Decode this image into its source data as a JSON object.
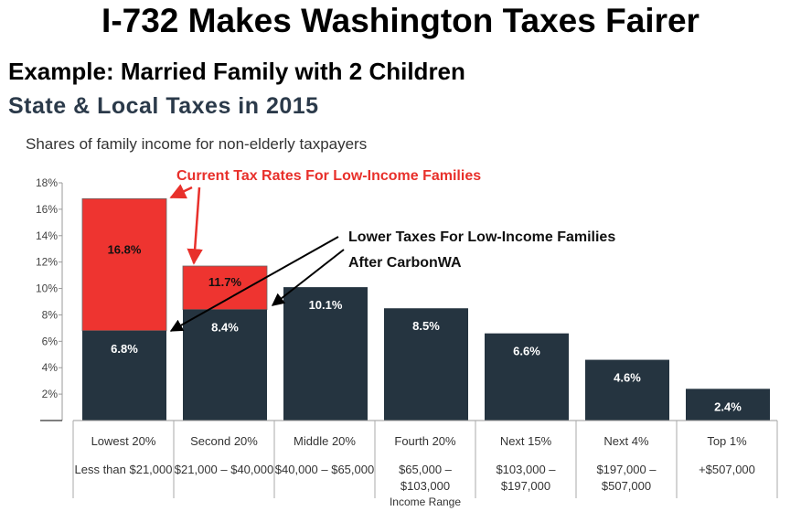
{
  "header": {
    "title": "I-732 Makes Washington Taxes Fairer",
    "subtitle1": "Example: Married Family with 2 Children",
    "subtitle2": "State & Local Taxes in 2015"
  },
  "colors": {
    "dark_bar": "#253440",
    "red_bar": "#ee3430",
    "red_text": "#e8302b"
  },
  "chart_data": {
    "type": "bar",
    "title": "State & Local Taxes in 2015",
    "subtitle": "Shares of family income for non-elderly taxpayers",
    "xlabel": "Income Range",
    "ylabel": "",
    "ylim": [
      0,
      18
    ],
    "yticks": [
      "",
      "2%",
      "4%",
      "6%",
      "8%",
      "10%",
      "12%",
      "14%",
      "16%",
      "18%"
    ],
    "grid": false,
    "categories": [
      "Lowest 20%",
      "Second 20%",
      "Middle 20%",
      "Fourth 20%",
      "Next 15%",
      "Next 4%",
      "Top 1%"
    ],
    "income_ranges": [
      [
        "Less than $21,000"
      ],
      [
        "$21,000 – $40,000"
      ],
      [
        "$40,000 – $65,000"
      ],
      [
        "$65,000 –",
        "$103,000"
      ],
      [
        "$103,000 –",
        "$197,000"
      ],
      [
        "$197,000 –",
        "$507,000"
      ],
      [
        "+$507,000"
      ]
    ],
    "series": [
      {
        "values": [
          6.8,
          8.4,
          10.1,
          8.5,
          6.6,
          4.6,
          2.4
        ],
        "labels": [
          "6.8%",
          "8.4%",
          "10.1%",
          "8.5%",
          "6.6%",
          "4.6%",
          "2.4%"
        ]
      },
      {
        "values": [
          16.8,
          11.7,
          null,
          null,
          null,
          null,
          null
        ],
        "labels": [
          "16.8%",
          "11.7%",
          "",
          "",
          "",
          "",
          ""
        ]
      }
    ],
    "annotations": [
      "Current Tax Rates For Low-Income Families",
      "Lower Taxes For Low-Income Families",
      "After CarbonWA"
    ]
  }
}
